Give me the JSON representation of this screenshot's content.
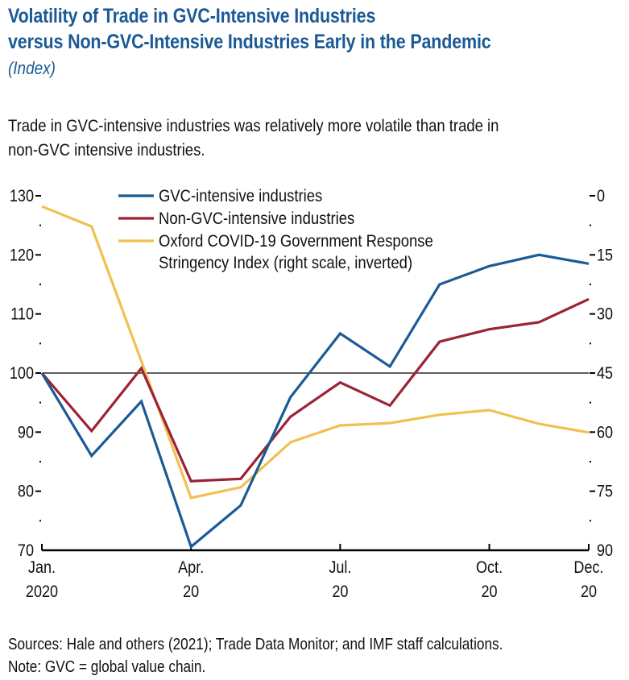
{
  "header": {
    "title_line1": "Volatility of Trade in GVC-Intensive Industries",
    "title_line2": "versus Non-GVC-Intensive Industries Early in the Pandemic",
    "subtitle": "(Index)",
    "description_line1": "Trade in GVC-intensive industries was relatively more volatile than trade in",
    "description_line2": "non-GVC intensive industries."
  },
  "footer": {
    "sources": "Sources: Hale and others (2021); Trade Data Monitor; and IMF staff calculations.",
    "note": "Note: GVC = global value chain."
  },
  "colors": {
    "gvc": "#1a5a96",
    "non_gvc": "#9b2335",
    "stringency": "#f0c050",
    "title": "#1a5a96"
  },
  "chart_data": {
    "type": "line",
    "title": "Volatility of Trade in GVC-Intensive Industries versus Non-GVC-Intensive Industries Early in the Pandemic",
    "subtitle": "(Index)",
    "x": [
      "Jan 2020",
      "Feb 2020",
      "Mar 2020",
      "Apr 2020",
      "May 2020",
      "Jun 2020",
      "Jul 2020",
      "Aug 2020",
      "Sep 2020",
      "Oct 2020",
      "Nov 2020",
      "Dec 2020"
    ],
    "x_tick_labels": [
      {
        "index": 0,
        "line1": "Jan.",
        "line2": "2020"
      },
      {
        "index": 3,
        "line1": "Apr.",
        "line2": "20"
      },
      {
        "index": 6,
        "line1": "Jul.",
        "line2": "20"
      },
      {
        "index": 9,
        "line1": "Oct.",
        "line2": "20"
      },
      {
        "index": 11,
        "line1": "Dec.",
        "line2": "20"
      }
    ],
    "left_axis": {
      "range": [
        70,
        130
      ],
      "ticks": [
        70,
        80,
        90,
        100,
        110,
        120,
        130
      ],
      "minor_ticks": [
        75,
        85,
        95,
        105,
        115,
        125
      ]
    },
    "right_axis": {
      "range": [
        0,
        90
      ],
      "inverted": true,
      "ticks": [
        0,
        15,
        30,
        45,
        60,
        75,
        90
      ],
      "minor_ticks": [
        7.5,
        22.5,
        37.5,
        52.5,
        67.5,
        82.5
      ]
    },
    "reference_line": 100,
    "legend_position": "top-center",
    "series": [
      {
        "name": "GVC-intensive industries",
        "axis": "left",
        "color": "#1a5a96",
        "values": [
          100,
          86.0,
          95.2,
          70.6,
          77.6,
          95.9,
          106.7,
          101.1,
          115.0,
          118.1,
          120.0,
          118.5
        ]
      },
      {
        "name": "Non-GVC-intensive industries",
        "axis": "left",
        "color": "#9b2335",
        "values": [
          100,
          90.2,
          100.8,
          81.7,
          82.1,
          92.6,
          98.4,
          94.5,
          105.3,
          107.4,
          108.6,
          112.5
        ]
      },
      {
        "name": "Oxford COVID-19 Government Response Stringency Index (right scale, inverted)",
        "legend_line1": "Oxford COVID-19 Government Response",
        "legend_line2": "Stringency Index (right scale, inverted)",
        "axis": "right",
        "color": "#f0c050",
        "values": [
          2.7,
          7.8,
          42.0,
          76.7,
          74.0,
          62.6,
          58.3,
          57.7,
          55.6,
          54.4,
          57.9,
          60.1
        ]
      }
    ]
  }
}
